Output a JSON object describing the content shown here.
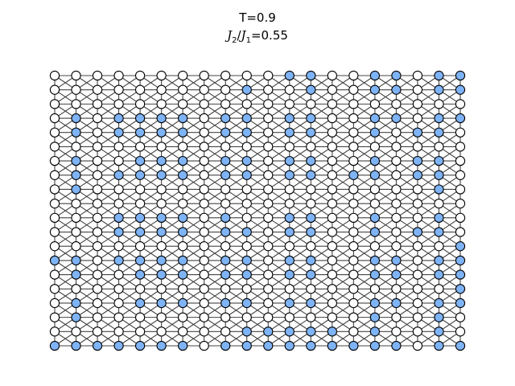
{
  "title": {
    "temperature": "T=0.9",
    "ratio_symbol_num": "J",
    "ratio_sub_num": "2",
    "ratio_symbol_den": "J",
    "ratio_sub_den": "1",
    "ratio_value": "=0.55"
  },
  "lattice": {
    "cols": 20,
    "rows": 20,
    "bonds": "nearest-neighbor (horizontal, vertical) and next-nearest-neighbor (diagonal)",
    "colors": {
      "spin_up": "#ffffff",
      "spin_down": "#7eb3f5",
      "node_stroke": "#000000",
      "bond": "#444444"
    },
    "spins": [
      "00000000000110011011",
      "00000000010010011011",
      "00000000000000000000",
      "01011110110110011011",
      "01011110110110010110",
      "00000000000000000000",
      "01001110110110010110",
      "01011110110110110110",
      "01000000000000000010",
      "00000000000000000000",
      "00011110100110010010",
      "00011110110110010110",
      "00000000000000000001",
      "11011110110110011011",
      "01001110110110011011",
      "00000000000000000001",
      "01001110110110011011",
      "01000000000000010010",
      "00000000011111010010",
      "11111110111111111011"
    ]
  }
}
